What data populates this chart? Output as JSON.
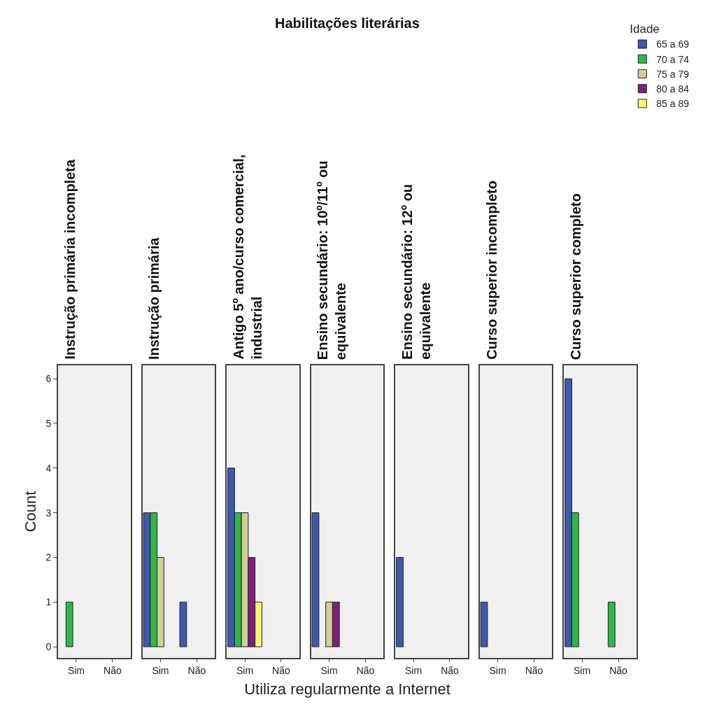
{
  "chart_data": [
    {
      "type": "bar",
      "title": "Instrução primária incompleta",
      "ylabel": "Count",
      "categories": [
        "Sim",
        "Não"
      ],
      "ylim": [
        -0.25,
        6.3
      ],
      "yticks": [
        0,
        1,
        2,
        3,
        4,
        5,
        6
      ],
      "grid": false,
      "series": [
        {
          "color": "#3e58ac",
          "values": [
            null,
            null
          ]
        },
        {
          "color": "#2eb848",
          "values": [
            1,
            null
          ]
        },
        {
          "color": "#d3ce97",
          "values": [
            null,
            null
          ]
        },
        {
          "color": "#7c207c",
          "values": [
            null,
            null
          ]
        },
        {
          "color": "#fbf873",
          "values": [
            null,
            null
          ]
        }
      ]
    },
    {
      "type": "bar",
      "title": "Instrução primária",
      "categories": [
        "Sim",
        "Não"
      ],
      "ylim": [
        -0.25,
        6.3
      ],
      "yticks": [
        0,
        1,
        2,
        3,
        4,
        5,
        6
      ],
      "grid": false,
      "tick_labels": "x",
      "series": [
        {
          "color": "#3e58ac",
          "values": [
            3,
            1
          ]
        },
        {
          "color": "#2eb848",
          "values": [
            3,
            null
          ]
        },
        {
          "color": "#d3ce97",
          "values": [
            2,
            null
          ]
        },
        {
          "color": "#7c207c",
          "values": [
            null,
            null
          ]
        },
        {
          "color": "#fbf873",
          "values": [
            null,
            null
          ]
        }
      ]
    },
    {
      "type": "bar",
      "title": "Antigo 5º ano/curso comercial, industrial",
      "categories": [
        "Sim",
        "Não"
      ],
      "ylim": [
        -0.25,
        6.3
      ],
      "yticks": [
        0,
        1,
        2,
        3,
        4,
        5,
        6
      ],
      "grid": false,
      "tick_labels": "x",
      "series": [
        {
          "color": "#3e58ac",
          "values": [
            4,
            null
          ]
        },
        {
          "color": "#2eb848",
          "values": [
            3,
            null
          ]
        },
        {
          "color": "#d3ce97",
          "values": [
            3,
            null
          ]
        },
        {
          "color": "#7c207c",
          "values": [
            2,
            null
          ]
        },
        {
          "color": "#fbf873",
          "values": [
            1,
            null
          ]
        }
      ]
    },
    {
      "type": "bar",
      "title": "Ensino secundário: 10º/11º ou equivalente",
      "xlabel": "Utiliza regularmente a Internet",
      "annotations": [
        "Habilitações literárias"
      ],
      "categories": [
        "Sim",
        "Não"
      ],
      "ylim": [
        -0.25,
        6.3
      ],
      "yticks": [
        0,
        1,
        2,
        3,
        4,
        5,
        6
      ],
      "grid": false,
      "tick_labels": "x",
      "series": [
        {
          "color": "#3e58ac",
          "values": [
            3,
            null
          ]
        },
        {
          "color": "#2eb848",
          "values": [
            null,
            null
          ]
        },
        {
          "color": "#d3ce97",
          "values": [
            1,
            null
          ]
        },
        {
          "color": "#7c207c",
          "values": [
            1,
            null
          ]
        },
        {
          "color": "#fbf873",
          "values": [
            null,
            null
          ]
        }
      ]
    },
    {
      "type": "bar",
      "title": "Ensino secundário: 12º ou equivalente",
      "categories": [
        "Sim",
        "Não"
      ],
      "ylim": [
        -0.25,
        6.3
      ],
      "yticks": [
        0,
        1,
        2,
        3,
        4,
        5,
        6
      ],
      "grid": false,
      "tick_labels": "x",
      "series": [
        {
          "color": "#3e58ac",
          "values": [
            2,
            null
          ]
        },
        {
          "color": "#2eb848",
          "values": [
            null,
            null
          ]
        },
        {
          "color": "#d3ce97",
          "values": [
            null,
            null
          ]
        },
        {
          "color": "#7c207c",
          "values": [
            null,
            null
          ]
        },
        {
          "color": "#fbf873",
          "values": [
            null,
            null
          ]
        }
      ]
    },
    {
      "type": "bar",
      "title": "Curso superior incompleto",
      "categories": [
        "Sim",
        "Não"
      ],
      "ylim": [
        -0.25,
        6.3
      ],
      "yticks": [
        0,
        1,
        2,
        3,
        4,
        5,
        6
      ],
      "grid": false,
      "tick_labels": "x",
      "series": [
        {
          "color": "#3e58ac",
          "values": [
            1,
            null
          ]
        },
        {
          "color": "#2eb848",
          "values": [
            null,
            null
          ]
        },
        {
          "color": "#d3ce97",
          "values": [
            null,
            null
          ]
        },
        {
          "color": "#7c207c",
          "values": [
            null,
            null
          ]
        },
        {
          "color": "#fbf873",
          "values": [
            null,
            null
          ]
        }
      ]
    },
    {
      "type": "bar",
      "title": "Curso superior completo",
      "legend": "top right",
      "legend_title": "Idade",
      "categories": [
        "Sim",
        "Não"
      ],
      "ylim": [
        -0.25,
        6.3
      ],
      "yticks": [
        0,
        1,
        2,
        3,
        4,
        5,
        6
      ],
      "grid": false,
      "tick_labels": "x",
      "series": [
        {
          "name": "65 a 69",
          "color": "#3e58ac",
          "values": [
            6,
            null
          ]
        },
        {
          "name": "70 a 74",
          "color": "#2eb848",
          "values": [
            3,
            1
          ]
        },
        {
          "name": "75 a 79",
          "color": "#d3ce97",
          "values": [
            null,
            null
          ]
        },
        {
          "name": "80 a 84",
          "color": "#7c207c",
          "values": [
            null,
            null
          ]
        },
        {
          "name": "85 a 89",
          "color": "#fbf873",
          "values": [
            null,
            null
          ]
        }
      ]
    }
  ]
}
